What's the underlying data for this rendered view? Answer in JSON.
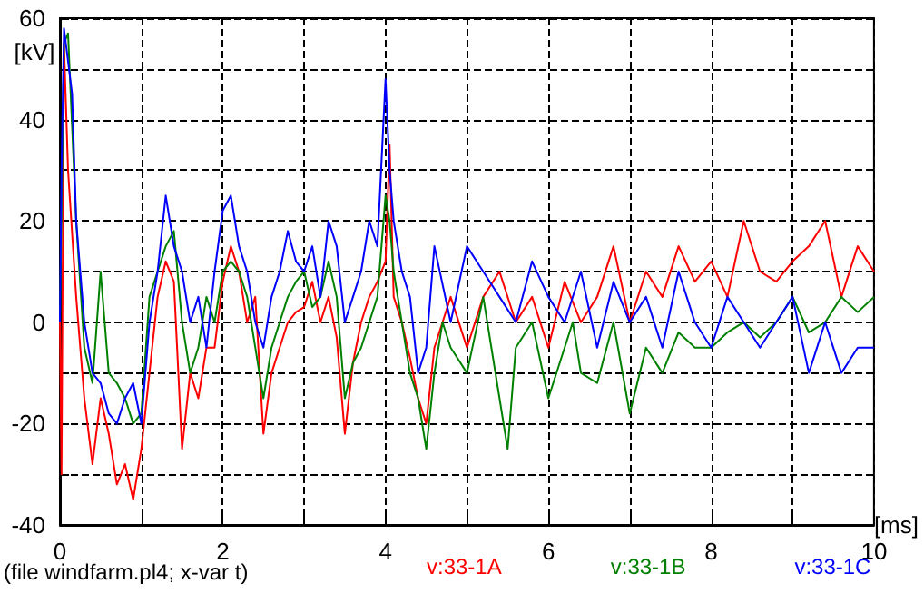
{
  "chart_data": {
    "type": "line",
    "xlabel": "[ms]",
    "ylabel": "[kV]",
    "annotations": [
      "(file windfarm.pl4; x-var t)"
    ],
    "xlim": [
      0,
      10
    ],
    "xticks": [
      0,
      {
        "value": 1,
        "label": null
      },
      2,
      {
        "value": 3,
        "label": null
      },
      4,
      {
        "value": 5,
        "label": null
      },
      6,
      {
        "value": 7,
        "label": null
      },
      8,
      {
        "value": 9,
        "label": null
      },
      10
    ],
    "ylim": [
      -40,
      60
    ],
    "yticks": [
      -40,
      {
        "value": -30,
        "label": null
      },
      -20,
      {
        "value": -10,
        "label": null
      },
      0,
      {
        "value": 10,
        "label": null
      },
      20,
      {
        "value": 30,
        "label": null
      },
      40,
      {
        "value": 50,
        "label": null
      },
      60
    ],
    "grid": true,
    "legend": "bottom",
    "marker": "none",
    "line_style": "solid",
    "series": [
      {
        "name": "v:33-1A",
        "color": "#ff0000",
        "x": [
          0,
          0.02,
          0.05,
          0.1,
          0.2,
          0.3,
          0.4,
          0.5,
          0.6,
          0.7,
          0.8,
          0.9,
          1.0,
          1.1,
          1.2,
          1.3,
          1.4,
          1.5,
          1.6,
          1.7,
          1.8,
          1.9,
          2.0,
          2.1,
          2.2,
          2.3,
          2.4,
          2.5,
          2.6,
          2.7,
          2.8,
          2.9,
          3.0,
          3.1,
          3.2,
          3.3,
          3.4,
          3.5,
          3.6,
          3.7,
          3.8,
          3.9,
          4.0,
          4.05,
          4.1,
          4.2,
          4.3,
          4.4,
          4.5,
          4.6,
          4.7,
          4.8,
          5.0,
          5.2,
          5.4,
          5.6,
          5.8,
          6.0,
          6.2,
          6.4,
          6.6,
          6.8,
          7.0,
          7.2,
          7.4,
          7.6,
          7.8,
          8.0,
          8.2,
          8.4,
          8.6,
          8.8,
          9.0,
          9.2,
          9.4,
          9.6,
          9.8,
          10
        ],
        "values": [
          0,
          -30,
          55,
          30,
          5,
          -15,
          -28,
          -15,
          -22,
          -32,
          -28,
          -35,
          -25,
          -10,
          5,
          12,
          8,
          -25,
          -10,
          -15,
          -5,
          -5,
          8,
          15,
          10,
          0,
          5,
          -22,
          -10,
          -5,
          0,
          2,
          3,
          8,
          0,
          5,
          -3,
          -22,
          -8,
          0,
          5,
          8,
          12,
          35,
          5,
          0,
          -7,
          -15,
          -20,
          -5,
          0,
          5,
          -5,
          5,
          10,
          0,
          5,
          -5,
          8,
          0,
          5,
          15,
          0,
          10,
          5,
          15,
          8,
          12,
          5,
          20,
          10,
          8,
          12,
          15,
          20,
          5,
          15,
          10
        ]
      },
      {
        "name": "v:33-1B",
        "color": "#008000",
        "x": [
          0,
          0.05,
          0.1,
          0.2,
          0.3,
          0.4,
          0.5,
          0.6,
          0.7,
          0.8,
          0.9,
          1.0,
          1.1,
          1.2,
          1.3,
          1.4,
          1.5,
          1.6,
          1.7,
          1.8,
          1.9,
          2.0,
          2.1,
          2.2,
          2.3,
          2.4,
          2.5,
          2.6,
          2.7,
          2.8,
          2.9,
          3.0,
          3.1,
          3.2,
          3.3,
          3.4,
          3.5,
          3.6,
          3.7,
          3.8,
          3.9,
          4.0,
          4.05,
          4.1,
          4.2,
          4.3,
          4.4,
          4.5,
          4.6,
          4.7,
          4.8,
          5.0,
          5.2,
          5.4,
          5.5,
          5.6,
          5.8,
          6.0,
          6.2,
          6.3,
          6.4,
          6.6,
          6.8,
          7.0,
          7.2,
          7.4,
          7.6,
          7.8,
          8.0,
          8.2,
          8.4,
          8.6,
          8.8,
          9.0,
          9.2,
          9.4,
          9.6,
          9.8,
          10
        ],
        "values": [
          0,
          55,
          57,
          20,
          -5,
          -12,
          10,
          -10,
          -12,
          -15,
          -20,
          -18,
          5,
          10,
          15,
          18,
          0,
          -10,
          -5,
          5,
          0,
          10,
          12,
          10,
          5,
          -5,
          -15,
          -5,
          0,
          5,
          8,
          10,
          3,
          5,
          12,
          5,
          -15,
          -8,
          -5,
          0,
          5,
          25,
          20,
          10,
          0,
          -10,
          -15,
          -25,
          -10,
          0,
          -5,
          -10,
          5,
          -15,
          -25,
          -5,
          0,
          -15,
          -5,
          0,
          -10,
          -12,
          0,
          -18,
          -5,
          -10,
          -2,
          -5,
          -5,
          -2,
          0,
          -3,
          0,
          5,
          -2,
          0,
          5,
          2,
          5
        ]
      },
      {
        "name": "v:33-1C",
        "color": "#0000ff",
        "x": [
          0,
          0.02,
          0.05,
          0.15,
          0.2,
          0.3,
          0.4,
          0.5,
          0.6,
          0.7,
          0.8,
          0.9,
          1.0,
          1.1,
          1.2,
          1.3,
          1.4,
          1.5,
          1.6,
          1.7,
          1.8,
          1.9,
          2.0,
          2.1,
          2.2,
          2.3,
          2.4,
          2.5,
          2.6,
          2.7,
          2.8,
          2.9,
          3.0,
          3.1,
          3.2,
          3.3,
          3.4,
          3.5,
          3.6,
          3.7,
          3.8,
          3.9,
          4.0,
          4.05,
          4.1,
          4.2,
          4.3,
          4.4,
          4.5,
          4.6,
          4.8,
          5.0,
          5.2,
          5.4,
          5.6,
          5.8,
          6.0,
          6.2,
          6.4,
          6.6,
          6.8,
          7.0,
          7.2,
          7.4,
          7.6,
          7.8,
          8.0,
          8.2,
          8.4,
          8.6,
          8.8,
          9.0,
          9.2,
          9.4,
          9.6,
          9.8,
          10
        ],
        "values": [
          0,
          30,
          58,
          45,
          20,
          0,
          -10,
          -12,
          -18,
          -20,
          -15,
          -12,
          -20,
          0,
          10,
          25,
          15,
          10,
          0,
          5,
          -5,
          10,
          22,
          25,
          15,
          10,
          0,
          -5,
          5,
          10,
          18,
          12,
          10,
          15,
          5,
          20,
          15,
          0,
          5,
          10,
          20,
          15,
          48,
          30,
          20,
          10,
          5,
          -10,
          -5,
          15,
          0,
          15,
          10,
          5,
          0,
          12,
          5,
          0,
          10,
          -5,
          8,
          0,
          5,
          -5,
          10,
          0,
          -5,
          5,
          0,
          -5,
          0,
          5,
          -10,
          0,
          -10,
          -5,
          -5
        ]
      }
    ]
  }
}
